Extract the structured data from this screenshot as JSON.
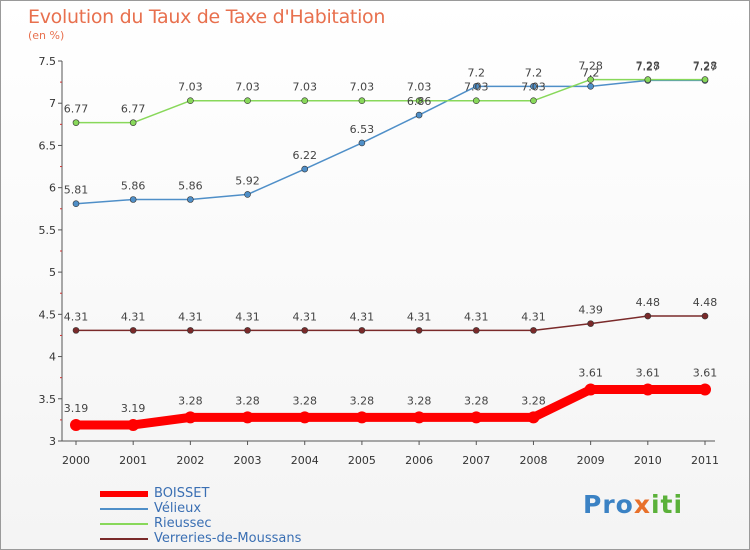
{
  "chart_data": {
    "type": "line",
    "title": "Evolution du Taux de Taxe d'Habitation",
    "subtitle": "(en %)",
    "x": [
      "2000",
      "2001",
      "2002",
      "2003",
      "2004",
      "2005",
      "2006",
      "2007",
      "2008",
      "2009",
      "2010",
      "2011"
    ],
    "ylim": [
      3,
      7.5
    ],
    "yticks": [
      "3",
      "3.5",
      "4",
      "4.5",
      "5",
      "5.5",
      "6",
      "6.5",
      "7",
      "7.5"
    ],
    "grid": false,
    "legend_position": "bottom-left",
    "series": [
      {
        "name": "BOISSET",
        "color": "#ff0000",
        "values": [
          3.19,
          3.19,
          3.28,
          3.28,
          3.28,
          3.28,
          3.28,
          3.28,
          3.28,
          3.61,
          3.61,
          3.61
        ],
        "labels": [
          "3.19",
          "3.19",
          "3.28",
          "3.28",
          "3.28",
          "3.28",
          "3.28",
          "3.28",
          "3.28",
          "3.61",
          "3.61",
          "3.61"
        ]
      },
      {
        "name": "Vélieux",
        "color": "#4f8fc8",
        "values": [
          5.81,
          5.86,
          5.86,
          5.92,
          6.22,
          6.53,
          6.86,
          7.2,
          7.2,
          7.2,
          7.27,
          7.27
        ],
        "labels": [
          "5.81",
          "5.86",
          "5.86",
          "5.92",
          "6.22",
          "6.53",
          "6.86",
          "7.2",
          "7.2",
          "7.2",
          "7.27",
          "7.27"
        ]
      },
      {
        "name": "Rieussec",
        "color": "#88d85a",
        "values": [
          6.77,
          6.77,
          7.03,
          7.03,
          7.03,
          7.03,
          7.03,
          7.03,
          7.03,
          7.28,
          7.28,
          7.28
        ],
        "labels": [
          "6.77",
          "6.77",
          "7.03",
          "7.03",
          "7.03",
          "7.03",
          "7.03",
          "7.03",
          "7.03",
          "7.28",
          "7.28",
          "7.28"
        ]
      },
      {
        "name": "Verreries-de-Moussans",
        "color": "#7a2a2a",
        "values": [
          4.31,
          4.31,
          4.31,
          4.31,
          4.31,
          4.31,
          4.31,
          4.31,
          4.31,
          4.39,
          4.48,
          4.48
        ],
        "labels": [
          "4.31",
          "4.31",
          "4.31",
          "4.31",
          "4.31",
          "4.31",
          "4.31",
          "4.31",
          "4.31",
          "4.39",
          "4.48",
          "4.48"
        ]
      }
    ]
  },
  "legend": {
    "items": [
      "BOISSET",
      "Vélieux",
      "Rieussec",
      "Verreries-de-Moussans"
    ]
  },
  "logo": {
    "part1": "Pro",
    "part2": "x",
    "part3": "iti",
    "colors": [
      "#3b82c4",
      "#e8702a",
      "#5bb13a"
    ]
  }
}
